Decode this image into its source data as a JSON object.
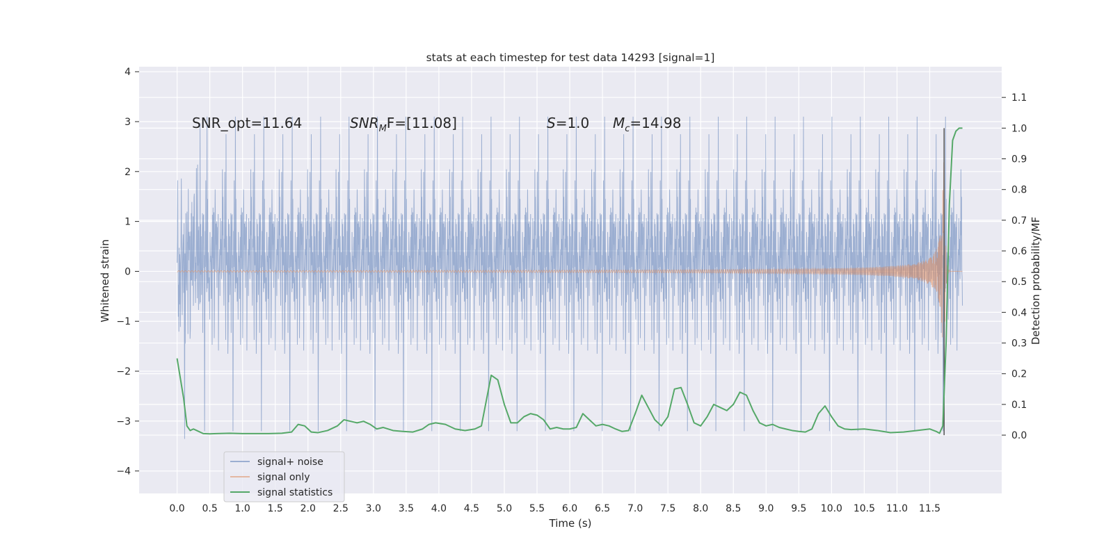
{
  "chart_data": {
    "type": "line",
    "title": "stats at each timestep for test data 14293 [signal=1]",
    "xlabel": "Time (s)",
    "ylabel": "Whitened strain",
    "ylabel_right": "Detection probability/MF",
    "xlim": [
      -0.58,
      12.6
    ],
    "ylim": [
      -4.45,
      4.1
    ],
    "ylim_right": [
      -0.19,
      1.2
    ],
    "x_ticks": [
      0.0,
      0.5,
      1.0,
      1.5,
      2.0,
      2.5,
      3.0,
      3.5,
      4.0,
      4.5,
      5.0,
      5.5,
      6.0,
      6.5,
      7.0,
      7.5,
      8.0,
      8.5,
      9.0,
      9.5,
      10.0,
      10.5,
      11.0,
      11.5
    ],
    "x_tick_labels": [
      "0.0",
      "0.5",
      "1.0",
      "1.5",
      "2.0",
      "2.5",
      "3.0",
      "3.5",
      "4.0",
      "4.5",
      "5.0",
      "5.5",
      "6.0",
      "6.5",
      "7.0",
      "7.5",
      "8.0",
      "8.5",
      "9.0",
      "9.5",
      "10.0",
      "10.5",
      "11.0",
      "11.5"
    ],
    "y_ticks": [
      4,
      3,
      2,
      1,
      0,
      -1,
      -2,
      -3,
      -4
    ],
    "y_tick_labels": [
      "4",
      "3",
      "2",
      "1",
      "0",
      "−1",
      "−2",
      "−3",
      "−4"
    ],
    "y_right_ticks": [
      1.1,
      1.0,
      0.9,
      0.8,
      0.7,
      0.6,
      0.5,
      0.4,
      0.3,
      0.2,
      0.1,
      0.0
    ],
    "y_right_tick_labels": [
      "1.1",
      "1.0",
      "0.9",
      "0.8",
      "0.7",
      "0.6",
      "0.5",
      "0.4",
      "0.3",
      "0.2",
      "0.1",
      "0.0"
    ],
    "grid": true,
    "legend_position": "lower-left",
    "annotations": {
      "snr_opt": "SNR_opt=11.64",
      "snr_mf_prefix": "SNR",
      "snr_mf_sub": "M",
      "snr_mf_rest": "F=[11.08]",
      "s_letter": "S",
      "s_rest": "=1.0",
      "mc_letter": "M",
      "mc_sub": "c",
      "mc_rest": "=14.98"
    },
    "series": [
      {
        "name": "signal+ noise",
        "color": "#4c72b0",
        "opacity": 0.5,
        "x_range": [
          0.0,
          12.0
        ],
        "amplitude_range": [
          -4.1,
          3.75
        ]
      },
      {
        "name": "signal only",
        "color": "#dd8452",
        "opacity": 0.5,
        "x_range": [
          0.0,
          12.0
        ],
        "merger_time": 11.72,
        "peak_amplitude": 2.3
      },
      {
        "name": "signal statistics",
        "color": "#55a868",
        "axis": "right",
        "x": [
          0.0,
          0.1,
          0.15,
          0.2,
          0.25,
          0.3,
          0.4,
          0.5,
          0.6,
          0.8,
          1.0,
          1.2,
          1.4,
          1.6,
          1.75,
          1.85,
          1.95,
          2.05,
          2.15,
          2.3,
          2.45,
          2.55,
          2.65,
          2.75,
          2.85,
          2.95,
          3.05,
          3.15,
          3.3,
          3.45,
          3.6,
          3.75,
          3.85,
          3.95,
          4.1,
          4.25,
          4.4,
          4.55,
          4.65,
          4.75,
          4.8,
          4.9,
          5.0,
          5.1,
          5.2,
          5.3,
          5.4,
          5.5,
          5.6,
          5.7,
          5.8,
          5.9,
          6.0,
          6.1,
          6.2,
          6.3,
          6.4,
          6.5,
          6.6,
          6.7,
          6.8,
          6.9,
          7.0,
          7.1,
          7.2,
          7.3,
          7.4,
          7.5,
          7.6,
          7.7,
          7.8,
          7.9,
          8.0,
          8.1,
          8.2,
          8.3,
          8.4,
          8.5,
          8.6,
          8.7,
          8.8,
          8.9,
          9.0,
          9.1,
          9.2,
          9.3,
          9.4,
          9.5,
          9.6,
          9.7,
          9.8,
          9.9,
          10.0,
          10.1,
          10.2,
          10.3,
          10.5,
          10.7,
          10.9,
          11.1,
          11.3,
          11.5,
          11.6,
          11.65,
          11.7,
          11.75,
          11.8,
          11.85,
          11.9,
          11.95,
          12.0
        ],
        "y": [
          0.25,
          0.12,
          0.03,
          0.015,
          0.02,
          0.015,
          0.005,
          0.004,
          0.005,
          0.006,
          0.005,
          0.005,
          0.005,
          0.006,
          0.01,
          0.035,
          0.03,
          0.01,
          0.008,
          0.015,
          0.03,
          0.05,
          0.045,
          0.04,
          0.045,
          0.035,
          0.02,
          0.025,
          0.015,
          0.012,
          0.01,
          0.02,
          0.035,
          0.04,
          0.035,
          0.02,
          0.015,
          0.02,
          0.03,
          0.14,
          0.195,
          0.18,
          0.1,
          0.04,
          0.04,
          0.06,
          0.07,
          0.065,
          0.05,
          0.02,
          0.025,
          0.02,
          0.02,
          0.025,
          0.07,
          0.05,
          0.03,
          0.035,
          0.03,
          0.02,
          0.012,
          0.015,
          0.07,
          0.13,
          0.09,
          0.05,
          0.03,
          0.06,
          0.15,
          0.155,
          0.1,
          0.04,
          0.03,
          0.06,
          0.1,
          0.09,
          0.08,
          0.1,
          0.14,
          0.13,
          0.08,
          0.04,
          0.03,
          0.035,
          0.025,
          0.02,
          0.015,
          0.012,
          0.01,
          0.02,
          0.07,
          0.095,
          0.06,
          0.03,
          0.02,
          0.018,
          0.02,
          0.015,
          0.008,
          0.01,
          0.015,
          0.02,
          0.012,
          0.006,
          0.03,
          0.3,
          0.75,
          0.96,
          0.99,
          1.0,
          1.0
        ]
      }
    ],
    "vertical_line": {
      "x": 11.72,
      "color": "#555555"
    }
  }
}
